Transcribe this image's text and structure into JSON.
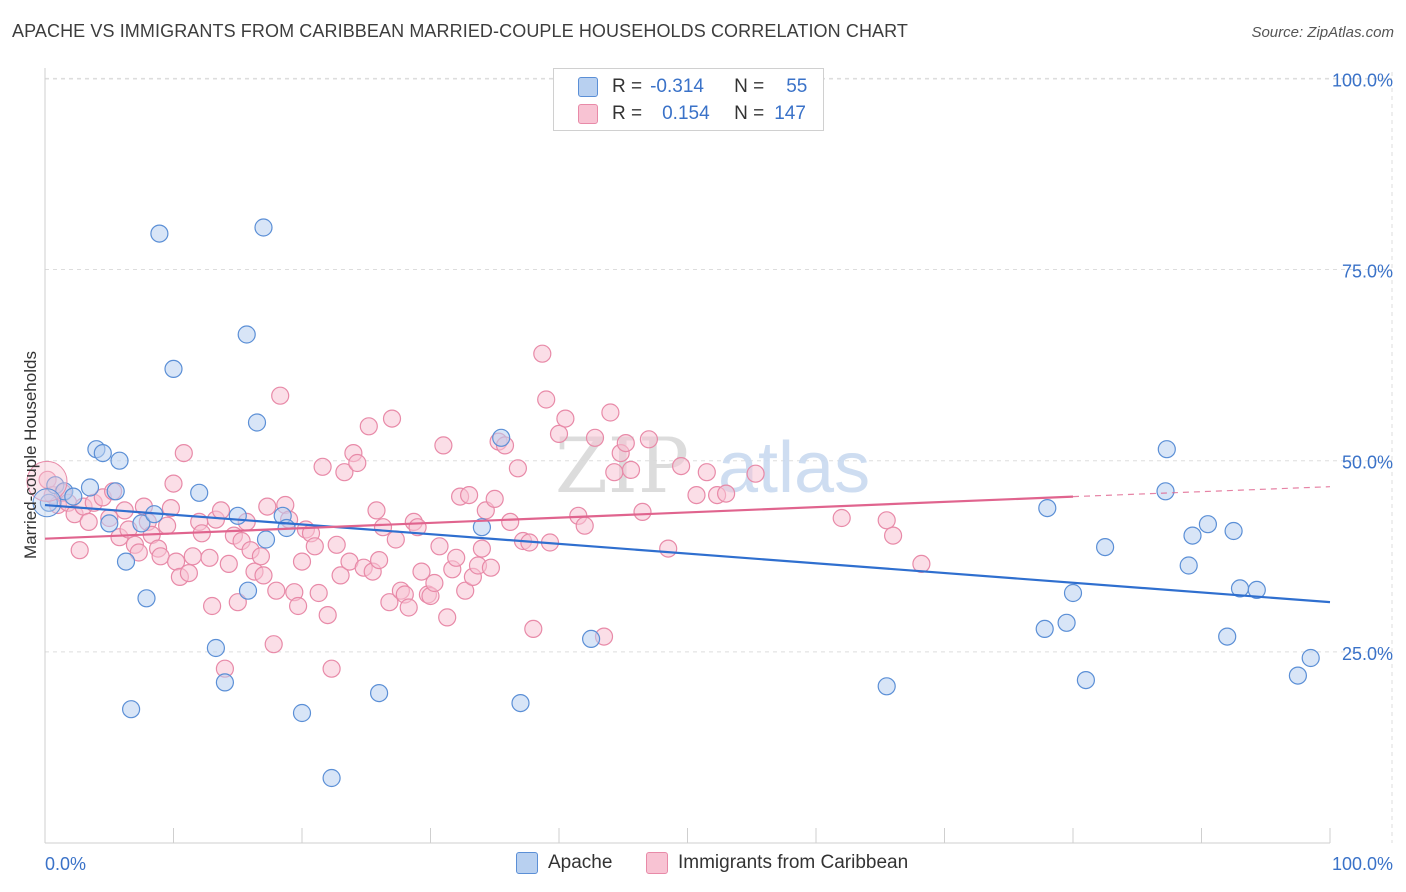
{
  "header": {
    "title": "APACHE VS IMMIGRANTS FROM CARIBBEAN MARRIED-COUPLE HOUSEHOLDS CORRELATION CHART",
    "source": "Source: ZipAtlas.com"
  },
  "legend": {
    "rows": [
      {
        "r_label": "R =",
        "r_value": "-0.314",
        "n_label": "N =",
        "n_value": "55"
      },
      {
        "r_label": "R =",
        "r_value": "0.154",
        "n_label": "N =",
        "n_value": "147"
      }
    ],
    "bottom": [
      "Apache",
      "Immigrants from Caribbean"
    ]
  },
  "watermark": {
    "zip": "ZIP",
    "atlas": "atlas"
  },
  "colors": {
    "apache_fill": "#b8d0f0",
    "apache_stroke": "#5b8fd6",
    "apache_line": "#2f6fcf",
    "carib_fill": "#f8c3d3",
    "carib_stroke": "#e88aa8",
    "carib_line": "#e0648e",
    "tick_label": "#3a72c8",
    "grid": "#dddddd"
  },
  "chart_data": {
    "type": "scatter",
    "title": "APACHE VS IMMIGRANTS FROM CARIBBEAN MARRIED-COUPLE HOUSEHOLDS CORRELATION CHART",
    "xlabel": "",
    "ylabel": "Married-couple Households",
    "xlim": [
      0,
      100
    ],
    "ylim": [
      0,
      105
    ],
    "x_tick_labels": [
      "0.0%",
      "100.0%"
    ],
    "y_ticks": [
      25,
      50,
      75,
      100
    ],
    "y_tick_labels": [
      "25.0%",
      "50.0%",
      "75.0%",
      "100.0%"
    ],
    "grid": true,
    "series": [
      {
        "name": "Apache",
        "r": -0.314,
        "n": 55,
        "trend": {
          "x0": 0,
          "y0": 44.2,
          "x1": 100,
          "y1": 31.5
        },
        "points": [
          [
            0.3,
            44.5
          ],
          [
            0.8,
            46.8
          ],
          [
            1.5,
            46.0
          ],
          [
            2.2,
            45.3
          ],
          [
            3.5,
            46.5
          ],
          [
            4.0,
            51.5
          ],
          [
            5.5,
            46.0
          ],
          [
            4.5,
            51.0
          ],
          [
            5.0,
            41.8
          ],
          [
            5.8,
            50.0
          ],
          [
            6.3,
            36.8
          ],
          [
            6.7,
            17.5
          ],
          [
            7.5,
            41.8
          ],
          [
            7.9,
            32.0
          ],
          [
            8.5,
            43.0
          ],
          [
            8.9,
            79.7
          ],
          [
            10.0,
            62.0
          ],
          [
            12.0,
            45.8
          ],
          [
            13.3,
            25.5
          ],
          [
            14.0,
            21.0
          ],
          [
            15.0,
            42.8
          ],
          [
            15.8,
            33.0
          ],
          [
            15.7,
            66.5
          ],
          [
            16.5,
            55.0
          ],
          [
            17.0,
            80.5
          ],
          [
            17.2,
            39.7
          ],
          [
            18.5,
            42.8
          ],
          [
            18.8,
            41.2
          ],
          [
            20.0,
            17.0
          ],
          [
            22.3,
            8.5
          ],
          [
            26.0,
            19.6
          ],
          [
            34.0,
            41.3
          ],
          [
            35.5,
            53.0
          ],
          [
            37.0,
            18.3
          ],
          [
            42.5,
            26.7
          ],
          [
            65.5,
            20.5
          ],
          [
            78.0,
            43.8
          ],
          [
            77.8,
            28.0
          ],
          [
            79.5,
            28.8
          ],
          [
            80.0,
            32.7
          ],
          [
            81.0,
            21.3
          ],
          [
            82.5,
            38.7
          ],
          [
            87.3,
            51.5
          ],
          [
            87.2,
            46.0
          ],
          [
            89.0,
            36.3
          ],
          [
            89.3,
            40.2
          ],
          [
            90.5,
            41.7
          ],
          [
            92.0,
            27.0
          ],
          [
            92.5,
            40.8
          ],
          [
            93.0,
            33.3
          ],
          [
            94.3,
            33.1
          ],
          [
            97.5,
            21.9
          ],
          [
            98.5,
            24.2
          ]
        ]
      },
      {
        "name": "Immigrants from Caribbean",
        "r": 0.154,
        "n": 147,
        "trend": {
          "x0": 0,
          "y0": 39.8,
          "x1": 80,
          "y1": 45.3
        },
        "trend_dashed": {
          "x0": 80,
          "y0": 45.3,
          "x1": 100,
          "y1": 46.6
        },
        "points": [
          [
            0.2,
            47.5
          ],
          [
            0.6,
            45.5
          ],
          [
            1.0,
            44.2
          ],
          [
            1.4,
            45.8
          ],
          [
            1.8,
            44.5
          ],
          [
            2.3,
            43.0
          ],
          [
            2.7,
            38.3
          ],
          [
            3.0,
            44.0
          ],
          [
            3.4,
            42.0
          ],
          [
            3.8,
            44.5
          ],
          [
            4.5,
            45.2
          ],
          [
            5.0,
            42.5
          ],
          [
            5.3,
            46.0
          ],
          [
            5.8,
            40.0
          ],
          [
            6.2,
            43.5
          ],
          [
            6.5,
            41.0
          ],
          [
            7.0,
            39.0
          ],
          [
            7.3,
            38.0
          ],
          [
            7.7,
            44.0
          ],
          [
            8.0,
            42.0
          ],
          [
            8.3,
            40.3
          ],
          [
            8.8,
            38.5
          ],
          [
            9.0,
            37.5
          ],
          [
            9.5,
            41.5
          ],
          [
            9.8,
            43.8
          ],
          [
            10.2,
            36.8
          ],
          [
            10.5,
            34.8
          ],
          [
            10.0,
            47.0
          ],
          [
            10.8,
            51.0
          ],
          [
            11.2,
            35.3
          ],
          [
            11.5,
            37.5
          ],
          [
            12.0,
            42.0
          ],
          [
            12.2,
            40.5
          ],
          [
            12.8,
            37.3
          ],
          [
            13.0,
            31.0
          ],
          [
            13.3,
            42.3
          ],
          [
            13.7,
            43.5
          ],
          [
            14.0,
            22.8
          ],
          [
            14.3,
            36.5
          ],
          [
            14.7,
            40.2
          ],
          [
            15.0,
            31.5
          ],
          [
            15.3,
            39.5
          ],
          [
            15.7,
            42.0
          ],
          [
            16.0,
            38.3
          ],
          [
            16.3,
            35.5
          ],
          [
            16.8,
            37.5
          ],
          [
            17.0,
            35.0
          ],
          [
            17.3,
            44.0
          ],
          [
            17.8,
            26.0
          ],
          [
            18.0,
            33.0
          ],
          [
            18.3,
            58.5
          ],
          [
            18.7,
            44.2
          ],
          [
            19.0,
            42.3
          ],
          [
            19.4,
            32.8
          ],
          [
            19.7,
            31.0
          ],
          [
            20.0,
            36.8
          ],
          [
            20.3,
            41.0
          ],
          [
            20.7,
            40.5
          ],
          [
            21.0,
            38.8
          ],
          [
            21.3,
            32.7
          ],
          [
            21.6,
            49.2
          ],
          [
            22.0,
            29.8
          ],
          [
            22.3,
            22.8
          ],
          [
            22.7,
            39.0
          ],
          [
            23.0,
            35.0
          ],
          [
            23.3,
            48.5
          ],
          [
            23.7,
            36.8
          ],
          [
            24.0,
            51.0
          ],
          [
            24.3,
            49.7
          ],
          [
            24.8,
            36.0
          ],
          [
            25.2,
            54.5
          ],
          [
            25.5,
            35.5
          ],
          [
            25.8,
            43.5
          ],
          [
            26.0,
            37.0
          ],
          [
            26.3,
            41.3
          ],
          [
            26.8,
            31.5
          ],
          [
            27.0,
            55.5
          ],
          [
            27.3,
            39.7
          ],
          [
            27.7,
            33.0
          ],
          [
            28.0,
            32.5
          ],
          [
            28.3,
            30.8
          ],
          [
            28.7,
            42.0
          ],
          [
            29.0,
            41.3
          ],
          [
            29.3,
            35.5
          ],
          [
            29.8,
            32.5
          ],
          [
            30.0,
            32.3
          ],
          [
            30.3,
            34.0
          ],
          [
            30.7,
            38.8
          ],
          [
            31.0,
            52.0
          ],
          [
            31.3,
            29.5
          ],
          [
            31.7,
            35.8
          ],
          [
            32.0,
            37.3
          ],
          [
            32.3,
            45.3
          ],
          [
            32.7,
            33.0
          ],
          [
            33.0,
            45.5
          ],
          [
            33.3,
            34.8
          ],
          [
            33.7,
            36.3
          ],
          [
            34.0,
            38.5
          ],
          [
            34.3,
            43.5
          ],
          [
            34.7,
            36.0
          ],
          [
            35.0,
            45.0
          ],
          [
            35.3,
            52.5
          ],
          [
            35.8,
            52.0
          ],
          [
            36.2,
            42.0
          ],
          [
            36.8,
            49.0
          ],
          [
            37.2,
            39.5
          ],
          [
            37.7,
            39.3
          ],
          [
            38.0,
            28.0
          ],
          [
            38.7,
            64.0
          ],
          [
            39.0,
            58.0
          ],
          [
            39.3,
            39.3
          ],
          [
            40.0,
            53.5
          ],
          [
            40.5,
            55.5
          ],
          [
            41.5,
            42.8
          ],
          [
            42.0,
            41.5
          ],
          [
            42.8,
            53.0
          ],
          [
            43.5,
            27.0
          ],
          [
            44.0,
            56.3
          ],
          [
            44.3,
            48.5
          ],
          [
            44.8,
            51.0
          ],
          [
            45.2,
            52.3
          ],
          [
            45.6,
            48.8
          ],
          [
            46.5,
            43.3
          ],
          [
            47.0,
            52.8
          ],
          [
            48.5,
            38.5
          ],
          [
            49.5,
            49.3
          ],
          [
            50.7,
            45.5
          ],
          [
            51.5,
            48.5
          ],
          [
            52.3,
            45.5
          ],
          [
            53.0,
            45.7
          ],
          [
            55.3,
            48.3
          ],
          [
            62.0,
            42.5
          ],
          [
            65.5,
            42.2
          ],
          [
            66.0,
            40.2
          ],
          [
            68.2,
            36.5
          ]
        ]
      }
    ]
  }
}
